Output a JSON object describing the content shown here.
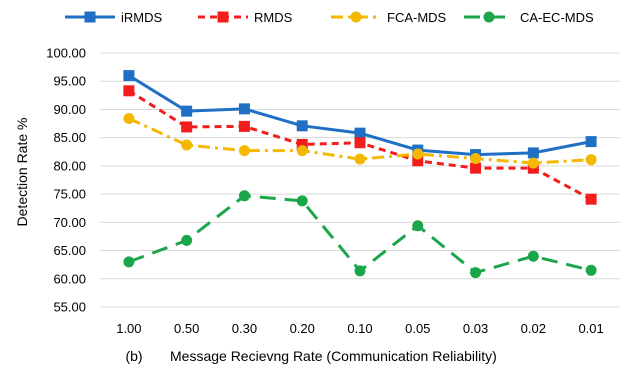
{
  "chart_data": {
    "type": "line",
    "panel_label": "(b)",
    "title": "",
    "xlabel": "Message Recievng Rate (Communication Reliability)",
    "ylabel": "Detection Rate %",
    "ylim": [
      55,
      100
    ],
    "yticks": [
      "55.00",
      "60.00",
      "65.00",
      "70.00",
      "75.00",
      "80.00",
      "85.00",
      "90.00",
      "95.00",
      "100.00"
    ],
    "categories": [
      "1.00",
      "0.50",
      "0.30",
      "0.20",
      "0.10",
      "0.05",
      "0.03",
      "0.02",
      "0.01"
    ],
    "grid": "horizontal",
    "legend_position": "top",
    "series": [
      {
        "name": "iRMDS",
        "color": "#1F6FC5",
        "line_style": "solid",
        "marker": "square",
        "values": [
          96.0,
          89.7,
          90.1,
          87.1,
          85.8,
          82.8,
          82.0,
          82.3,
          84.3
        ]
      },
      {
        "name": "RMDS",
        "color": "#F21D1D",
        "line_style": "dashed",
        "marker": "square",
        "values": [
          93.3,
          86.9,
          87.0,
          83.8,
          84.1,
          80.9,
          79.6,
          79.6,
          74.1
        ]
      },
      {
        "name": "FCA-MDS",
        "color": "#F5B800",
        "line_style": "dashdot",
        "marker": "circle",
        "values": [
          88.4,
          83.7,
          82.7,
          82.7,
          81.2,
          82.1,
          81.3,
          80.5,
          81.1
        ]
      },
      {
        "name": "CA-EC-MDS",
        "color": "#1BA64A",
        "line_style": "longdash",
        "marker": "circle",
        "values": [
          63.0,
          66.8,
          74.7,
          73.8,
          61.4,
          69.4,
          61.1,
          64.0,
          61.5
        ]
      }
    ]
  }
}
